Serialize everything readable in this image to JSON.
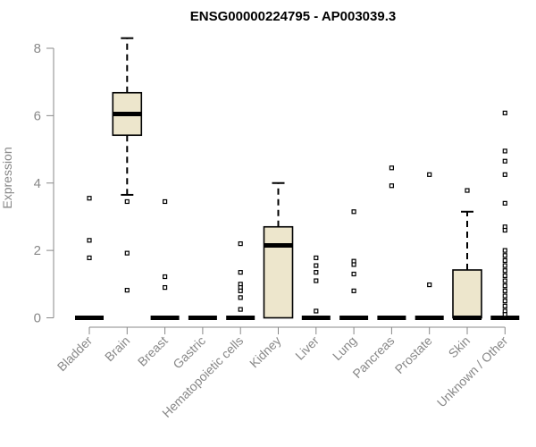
{
  "chart_data": {
    "type": "box",
    "title": "ENSG00000224795 - AP003039.3",
    "ylabel": "Expression",
    "xlabel": "",
    "ylim": [
      0,
      8.3
    ],
    "yticks": [
      0,
      2,
      4,
      6,
      8
    ],
    "box_fill": "#ede6cc",
    "categories": [
      "Bladder",
      "Brain",
      "Breast",
      "Gastric",
      "Hematopoietic cells",
      "Kidney",
      "Liver",
      "Lung",
      "Pancreas",
      "Prostate",
      "Skin",
      "Unknown / Other"
    ],
    "boxes": [
      {
        "category": "Bladder",
        "min": 0,
        "q1": 0,
        "median": 0,
        "q3": 0,
        "max": 0,
        "outliers": [
          3.55,
          2.3,
          1.78
        ]
      },
      {
        "category": "Brain",
        "min": 3.65,
        "q1": 5.42,
        "median": 6.05,
        "q3": 6.68,
        "max": 8.3,
        "outliers": [
          3.45,
          1.92,
          0.82
        ]
      },
      {
        "category": "Breast",
        "min": 0,
        "q1": 0,
        "median": 0,
        "q3": 0,
        "max": 0,
        "outliers": [
          3.45,
          1.22,
          0.9
        ]
      },
      {
        "category": "Gastric",
        "min": 0,
        "q1": 0,
        "median": 0,
        "q3": 0,
        "max": 0,
        "outliers": []
      },
      {
        "category": "Hematopoietic cells",
        "min": 0,
        "q1": 0,
        "median": 0,
        "q3": 0,
        "max": 0,
        "outliers": [
          2.2,
          1.35,
          1.0,
          0.9,
          0.8,
          0.6,
          0.25
        ]
      },
      {
        "category": "Kidney",
        "min": 0,
        "q1": 0,
        "median": 2.15,
        "q3": 2.7,
        "max": 4.0,
        "outliers": []
      },
      {
        "category": "Liver",
        "min": 0,
        "q1": 0,
        "median": 0,
        "q3": 0,
        "max": 0,
        "outliers": [
          1.78,
          1.55,
          1.35,
          1.1,
          0.2
        ]
      },
      {
        "category": "Lung",
        "min": 0,
        "q1": 0,
        "median": 0,
        "q3": 0,
        "max": 0,
        "outliers": [
          3.15,
          1.68,
          1.58,
          1.3,
          0.8
        ]
      },
      {
        "category": "Pancreas",
        "min": 0,
        "q1": 0,
        "median": 0,
        "q3": 0,
        "max": 0,
        "outliers": [
          4.45,
          3.92
        ]
      },
      {
        "category": "Prostate",
        "min": 0,
        "q1": 0,
        "median": 0,
        "q3": 0,
        "max": 0,
        "outliers": [
          4.25,
          0.98
        ]
      },
      {
        "category": "Skin",
        "min": 0,
        "q1": 0,
        "median": 0,
        "q3": 1.42,
        "max": 3.15,
        "outliers": [
          3.78
        ]
      },
      {
        "category": "Unknown / Other",
        "min": 0,
        "q1": 0,
        "median": 0,
        "q3": 0,
        "max": 0,
        "outliers": [
          6.08,
          4.95,
          4.65,
          4.25,
          3.4,
          2.7,
          2.6,
          2.0,
          1.85,
          1.7,
          1.55,
          1.4,
          1.25,
          1.1,
          0.95,
          0.8,
          0.65,
          0.5,
          0.35,
          0.2,
          0.1
        ]
      }
    ]
  }
}
